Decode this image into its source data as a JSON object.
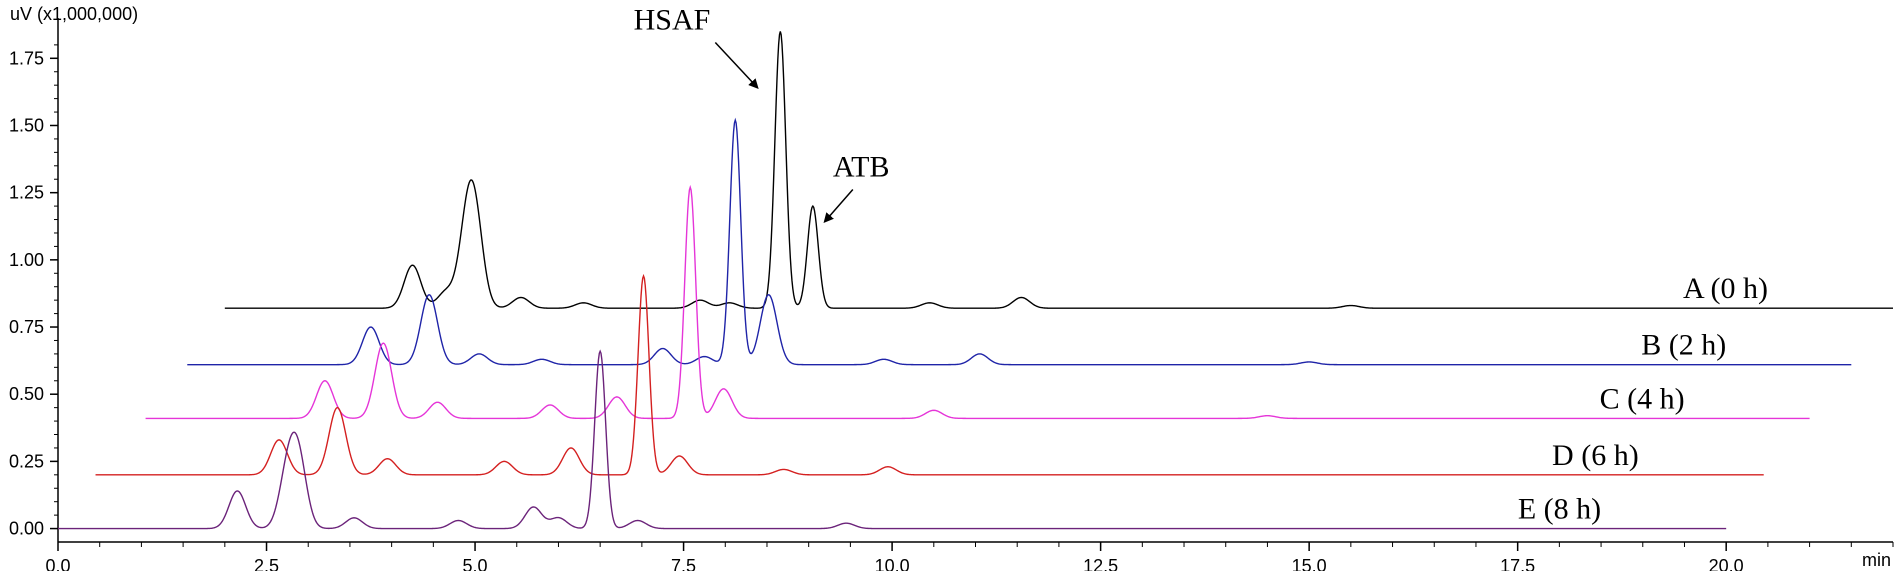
{
  "chart_data": {
    "type": "line",
    "title": "",
    "ylabel": "uV (x1,000,000)",
    "xlabel": "min",
    "xlim": [
      0,
      22
    ],
    "ylim": [
      -0.05,
      1.9
    ],
    "grid": false,
    "x_ticks": [
      "0.0",
      "2.5",
      "5.0",
      "7.5",
      "10.0",
      "12.5",
      "15.0",
      "17.5",
      "20.0"
    ],
    "y_ticks": [
      "0.00",
      "0.25",
      "0.50",
      "0.75",
      "1.00",
      "1.25",
      "1.50",
      "1.75"
    ],
    "x_tick_values": [
      0,
      2.5,
      5,
      7.5,
      10,
      12.5,
      15,
      17.5,
      20
    ],
    "y_tick_values": [
      0,
      0.25,
      0.5,
      0.75,
      1.0,
      1.25,
      1.5,
      1.75
    ],
    "annotations": [
      {
        "text": "HSAF",
        "x": 8.6,
        "y": 1.82
      },
      {
        "text": "ATB",
        "x": 9.05,
        "y": 1.18
      }
    ],
    "series": [
      {
        "name": "A (0 h)",
        "color": "#000000",
        "x_start": 2.0,
        "x_end": 22.0,
        "baseline": 0.82,
        "peaks": [
          {
            "x": 4.25,
            "y": 0.98
          },
          {
            "x": 4.65,
            "y": 0.88
          },
          {
            "x": 4.9,
            "y": 1.07
          },
          {
            "x": 5.0,
            "y": 1.11
          },
          {
            "x": 5.55,
            "y": 0.86
          },
          {
            "x": 6.3,
            "y": 0.84
          },
          {
            "x": 7.7,
            "y": 0.85
          },
          {
            "x": 8.05,
            "y": 0.84
          },
          {
            "x": 8.66,
            "y": 1.85
          },
          {
            "x": 9.05,
            "y": 1.2
          },
          {
            "x": 10.45,
            "y": 0.84
          },
          {
            "x": 11.55,
            "y": 0.86
          },
          {
            "x": 15.5,
            "y": 0.83
          }
        ]
      },
      {
        "name": "B (2 h)",
        "color": "#1f24a8",
        "x_start": 1.55,
        "x_end": 21.5,
        "baseline": 0.61,
        "peaks": [
          {
            "x": 3.75,
            "y": 0.75
          },
          {
            "x": 4.45,
            "y": 0.87
          },
          {
            "x": 5.05,
            "y": 0.65
          },
          {
            "x": 5.8,
            "y": 0.63
          },
          {
            "x": 7.25,
            "y": 0.67
          },
          {
            "x": 7.75,
            "y": 0.64
          },
          {
            "x": 8.12,
            "y": 1.52
          },
          {
            "x": 8.52,
            "y": 0.87
          },
          {
            "x": 9.9,
            "y": 0.63
          },
          {
            "x": 11.05,
            "y": 0.65
          },
          {
            "x": 15.0,
            "y": 0.62
          }
        ]
      },
      {
        "name": "C (4 h)",
        "color": "#e535d8",
        "x_start": 1.05,
        "x_end": 21.0,
        "baseline": 0.41,
        "peaks": [
          {
            "x": 3.2,
            "y": 0.55
          },
          {
            "x": 3.9,
            "y": 0.69
          },
          {
            "x": 4.55,
            "y": 0.47
          },
          {
            "x": 5.9,
            "y": 0.46
          },
          {
            "x": 6.7,
            "y": 0.49
          },
          {
            "x": 7.58,
            "y": 1.27
          },
          {
            "x": 7.98,
            "y": 0.52
          },
          {
            "x": 10.5,
            "y": 0.44
          },
          {
            "x": 14.5,
            "y": 0.42
          }
        ]
      },
      {
        "name": "D (6 h)",
        "color": "#d42020",
        "x_start": 0.45,
        "x_end": 20.45,
        "baseline": 0.2,
        "peaks": [
          {
            "x": 2.65,
            "y": 0.33
          },
          {
            "x": 3.35,
            "y": 0.45
          },
          {
            "x": 3.95,
            "y": 0.26
          },
          {
            "x": 5.35,
            "y": 0.25
          },
          {
            "x": 6.15,
            "y": 0.3
          },
          {
            "x": 7.02,
            "y": 0.94
          },
          {
            "x": 7.45,
            "y": 0.27
          },
          {
            "x": 8.7,
            "y": 0.22
          },
          {
            "x": 9.95,
            "y": 0.23
          }
        ]
      },
      {
        "name": "E (8 h)",
        "color": "#6b237a",
        "x_start": 0.0,
        "x_end": 20.0,
        "baseline": 0.0,
        "peaks": [
          {
            "x": 2.15,
            "y": 0.14
          },
          {
            "x": 2.75,
            "y": 0.19
          },
          {
            "x": 2.88,
            "y": 0.25
          },
          {
            "x": 3.55,
            "y": 0.04
          },
          {
            "x": 4.8,
            "y": 0.03
          },
          {
            "x": 5.7,
            "y": 0.08
          },
          {
            "x": 6.0,
            "y": 0.04
          },
          {
            "x": 6.5,
            "y": 0.66
          },
          {
            "x": 6.95,
            "y": 0.03
          },
          {
            "x": 9.45,
            "y": 0.02
          }
        ]
      }
    ]
  }
}
